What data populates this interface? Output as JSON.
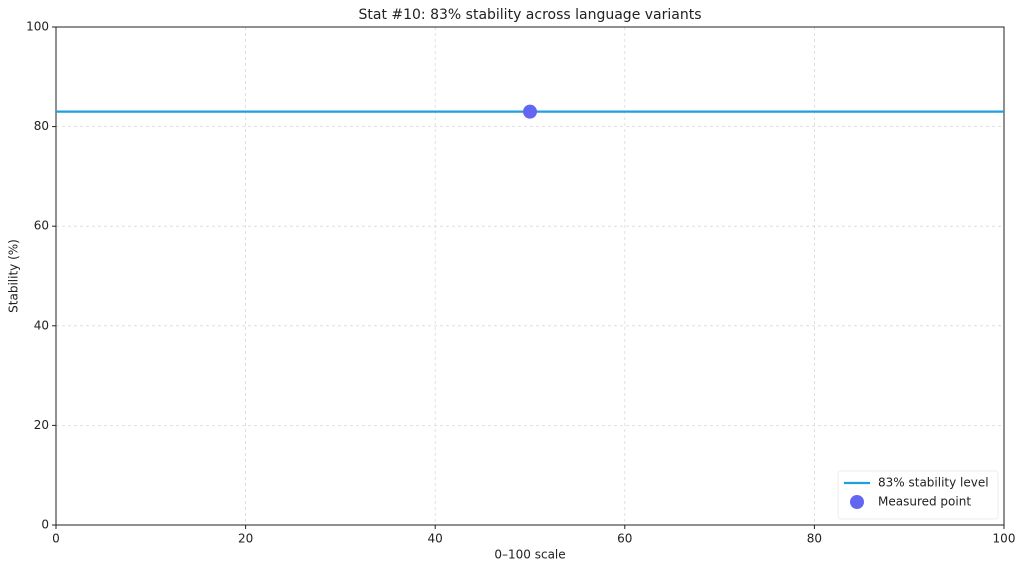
{
  "chart_data": {
    "type": "line",
    "title": "Stat #10: 83% stability across language variants",
    "x_label": "0–100 scale",
    "y_label": "Stability (%)",
    "series": [
      {
        "name": "83% stability level",
        "type": "line",
        "color": "#1f9ee0",
        "x": [
          0,
          100
        ],
        "values": [
          83,
          83
        ]
      },
      {
        "name": "Measured point",
        "type": "scatter",
        "color": "#6366f1",
        "x": [
          50
        ],
        "values": [
          83
        ]
      }
    ],
    "xlim": [
      0,
      100
    ],
    "xticks": [
      0,
      20,
      40,
      60,
      80,
      100
    ],
    "ylim": [
      0,
      100
    ],
    "yticks": [
      0,
      20,
      40,
      60,
      80,
      100
    ],
    "grid": true,
    "legend": "lower right"
  }
}
